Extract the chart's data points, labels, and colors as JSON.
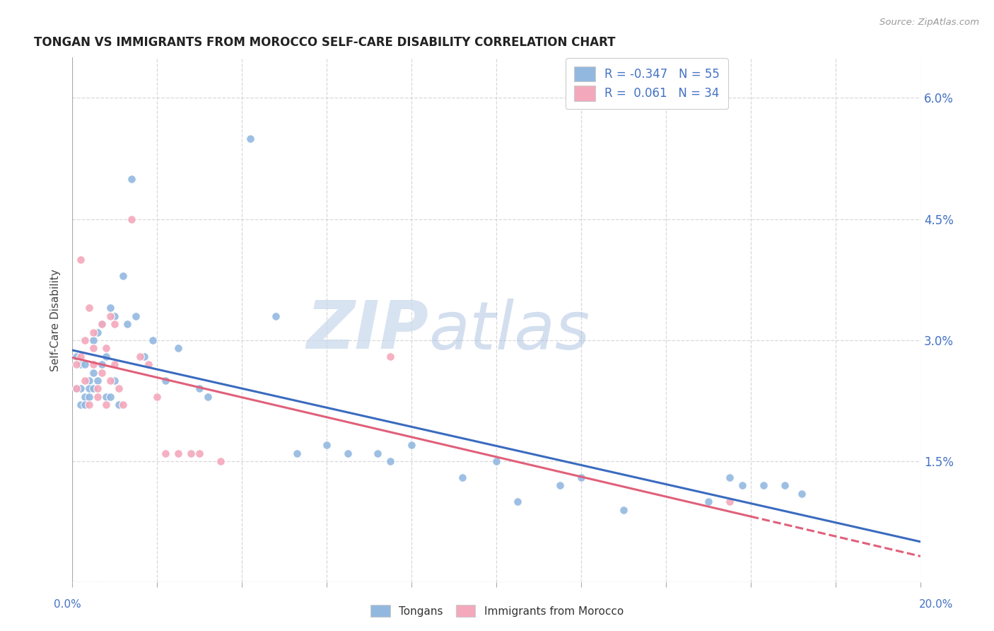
{
  "title": "TONGAN VS IMMIGRANTS FROM MOROCCO SELF-CARE DISABILITY CORRELATION CHART",
  "source": "Source: ZipAtlas.com",
  "ylabel": "Self-Care Disability",
  "xlim": [
    0.0,
    0.2
  ],
  "ylim": [
    0.0,
    0.065
  ],
  "ytick_vals": [
    0.0,
    0.015,
    0.03,
    0.045,
    0.06
  ],
  "ytick_labels": [
    "",
    "1.5%",
    "3.0%",
    "4.5%",
    "6.0%"
  ],
  "legend_r_tongan": "-0.347",
  "legend_n_tongan": "55",
  "legend_r_morocco": "0.061",
  "legend_n_morocco": "34",
  "color_tongan": "#92b8e0",
  "color_morocco": "#f4a8bc",
  "line_color_tongan": "#3a6bbf",
  "line_color_morocco": "#e0607a",
  "background_color": "#ffffff",
  "tick_color": "#4472c4",
  "title_color": "#222222",
  "source_color": "#999999",
  "grid_color": "#d8d8d8",
  "tongan_x": [
    0.001,
    0.001,
    0.002,
    0.002,
    0.002,
    0.003,
    0.003,
    0.003,
    0.004,
    0.004,
    0.004,
    0.005,
    0.005,
    0.005,
    0.006,
    0.006,
    0.007,
    0.007,
    0.008,
    0.008,
    0.009,
    0.009,
    0.01,
    0.01,
    0.011,
    0.012,
    0.013,
    0.014,
    0.015,
    0.017,
    0.019,
    0.022,
    0.025,
    0.03,
    0.032,
    0.042,
    0.048,
    0.053,
    0.06,
    0.065,
    0.072,
    0.075,
    0.08,
    0.092,
    0.1,
    0.105,
    0.115,
    0.12,
    0.13,
    0.15,
    0.155,
    0.158,
    0.163,
    0.168,
    0.172
  ],
  "tongan_y": [
    0.028,
    0.024,
    0.027,
    0.024,
    0.022,
    0.027,
    0.023,
    0.022,
    0.025,
    0.024,
    0.023,
    0.03,
    0.026,
    0.024,
    0.031,
    0.025,
    0.032,
    0.027,
    0.028,
    0.023,
    0.034,
    0.023,
    0.033,
    0.025,
    0.022,
    0.038,
    0.032,
    0.05,
    0.033,
    0.028,
    0.03,
    0.025,
    0.029,
    0.024,
    0.023,
    0.055,
    0.033,
    0.016,
    0.017,
    0.016,
    0.016,
    0.015,
    0.017,
    0.013,
    0.015,
    0.01,
    0.012,
    0.013,
    0.009,
    0.01,
    0.013,
    0.012,
    0.012,
    0.012,
    0.011
  ],
  "morocco_x": [
    0.001,
    0.001,
    0.002,
    0.002,
    0.003,
    0.003,
    0.004,
    0.004,
    0.005,
    0.005,
    0.005,
    0.006,
    0.006,
    0.007,
    0.007,
    0.008,
    0.008,
    0.009,
    0.009,
    0.01,
    0.01,
    0.011,
    0.012,
    0.014,
    0.016,
    0.018,
    0.02,
    0.022,
    0.025,
    0.028,
    0.03,
    0.035,
    0.075,
    0.155
  ],
  "morocco_y": [
    0.027,
    0.024,
    0.04,
    0.028,
    0.03,
    0.025,
    0.034,
    0.022,
    0.029,
    0.031,
    0.027,
    0.024,
    0.023,
    0.032,
    0.026,
    0.029,
    0.022,
    0.033,
    0.025,
    0.032,
    0.027,
    0.024,
    0.022,
    0.045,
    0.028,
    0.027,
    0.023,
    0.016,
    0.016,
    0.016,
    0.016,
    0.015,
    0.028,
    0.01
  ]
}
